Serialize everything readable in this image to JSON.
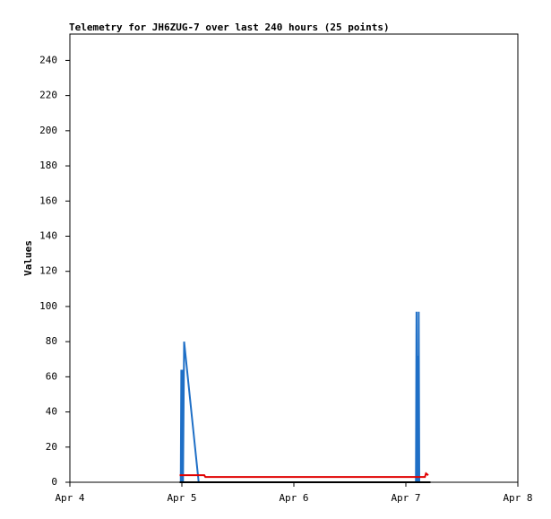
{
  "chart_data": {
    "type": "line",
    "title": "Telemetry for JH6ZUG-7 over last 240 hours (25 points)",
    "y_label": "Values",
    "xlim": [
      0,
      4
    ],
    "xticks": [
      {
        "value": 0,
        "label": "Apr 4"
      },
      {
        "value": 1,
        "label": "Apr 5"
      },
      {
        "value": 2,
        "label": "Apr 6"
      },
      {
        "value": 3,
        "label": "Apr 7"
      },
      {
        "value": 4,
        "label": "Apr 8"
      }
    ],
    "ylim": [
      0,
      255
    ],
    "yticks": [
      0,
      20,
      40,
      60,
      80,
      100,
      120,
      140,
      160,
      180,
      200,
      220,
      240
    ],
    "series": [
      {
        "color": "#1f6fc6",
        "x": [
          0.99,
          0.995,
          1.0,
          1.005,
          1.01,
          1.02,
          1.15,
          3.09,
          3.095,
          3.1,
          3.105,
          3.11,
          3.115,
          3.12
        ],
        "values": [
          0,
          64,
          0,
          64,
          0,
          80,
          0,
          0,
          97,
          0,
          72,
          0,
          97,
          0
        ]
      },
      {
        "color": "#e00000",
        "x": [
          0.98,
          1.2,
          1.21,
          3.17,
          3.18,
          3.2
        ],
        "values": [
          4,
          4,
          3,
          3,
          5,
          4
        ]
      },
      {
        "color": "#000000",
        "x": [
          0.98,
          3.22
        ],
        "values": [
          0,
          0
        ]
      }
    ]
  }
}
